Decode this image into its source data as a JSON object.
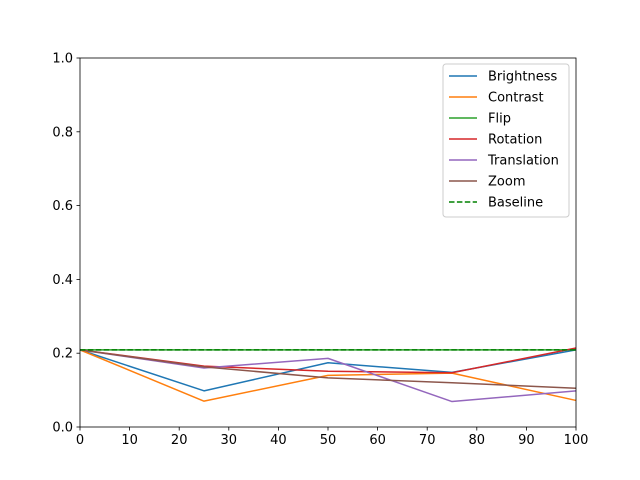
{
  "chart_data": {
    "type": "line",
    "title": "",
    "xlabel": "",
    "ylabel": "",
    "xlim": [
      0,
      100
    ],
    "ylim": [
      0.0,
      1.0
    ],
    "x_ticks": [
      "0",
      "10",
      "20",
      "30",
      "40",
      "50",
      "60",
      "70",
      "80",
      "90",
      "100"
    ],
    "y_ticks": [
      "0.0",
      "0.2",
      "0.4",
      "0.6",
      "0.8",
      "1.0"
    ],
    "grid": false,
    "legend_position": "top-right",
    "x": [
      0,
      25,
      50,
      75,
      100
    ],
    "series": [
      {
        "name": "Brightness",
        "color": "#1f77b4",
        "style": "solid",
        "values": [
          0.209,
          0.098,
          0.174,
          0.148,
          0.209
        ]
      },
      {
        "name": "Contrast",
        "color": "#ff7f0e",
        "style": "solid",
        "values": [
          0.209,
          0.07,
          0.14,
          0.146,
          0.072
        ]
      },
      {
        "name": "Flip",
        "color": "#2ca02c",
        "style": "solid",
        "values": [
          0.209,
          0.209,
          0.209,
          0.209,
          0.209
        ]
      },
      {
        "name": "Rotation",
        "color": "#d62728",
        "style": "solid",
        "values": [
          0.209,
          0.165,
          0.151,
          0.147,
          0.214
        ]
      },
      {
        "name": "Translation",
        "color": "#9467bd",
        "style": "solid",
        "values": [
          0.209,
          0.16,
          0.186,
          0.069,
          0.098
        ]
      },
      {
        "name": "Zoom",
        "color": "#8c564b",
        "style": "solid",
        "values": [
          0.209,
          0.163,
          0.133,
          0.12,
          0.105
        ]
      },
      {
        "name": "Baseline",
        "color": "#008000",
        "style": "dashed",
        "values": [
          0.209,
          0.209,
          0.209,
          0.209,
          0.209
        ]
      }
    ]
  }
}
